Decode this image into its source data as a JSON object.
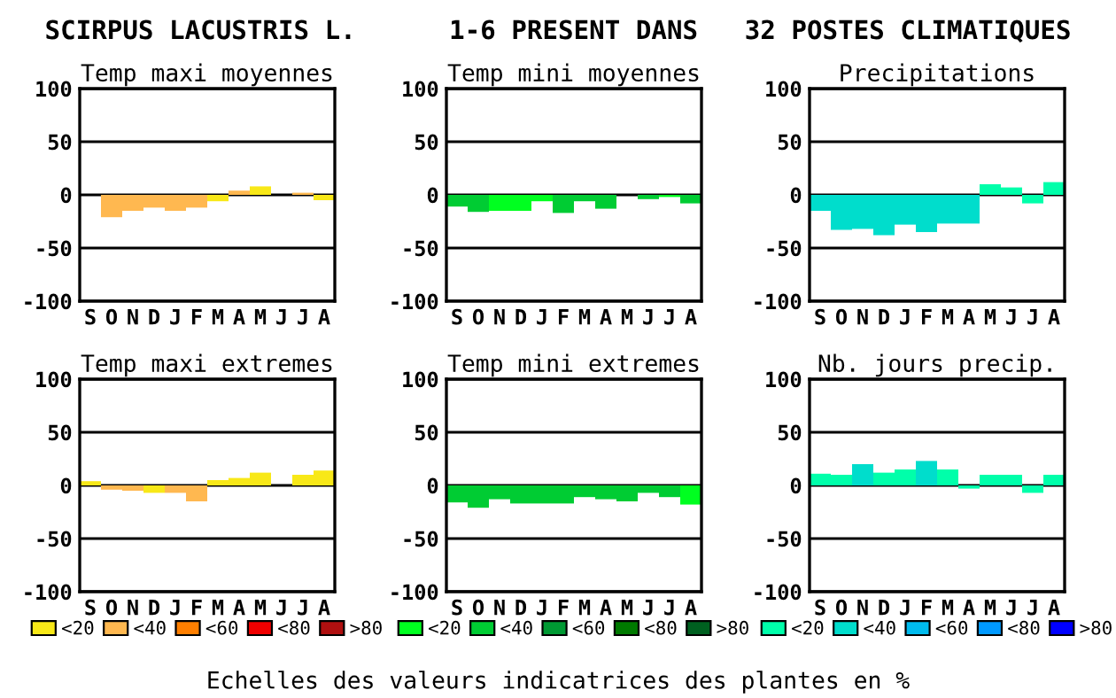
{
  "chart_data": [
    {
      "type": "bar",
      "title": "Temp maxi moyennes",
      "categories": [
        "S",
        "O",
        "N",
        "D",
        "J",
        "F",
        "M",
        "A",
        "M",
        "J",
        "J",
        "A"
      ],
      "ylim": [
        -100,
        100
      ],
      "yticks": [
        -100,
        -50,
        0,
        50,
        100
      ],
      "grid": "y",
      "legend": false,
      "series": [
        {
          "color": "#f8e818",
          "values": [
            null,
            null,
            null,
            null,
            null,
            null,
            -6,
            null,
            8,
            null,
            null,
            -5
          ]
        },
        {
          "color": "#ffb850",
          "values": [
            0,
            -21,
            -15,
            -12,
            -15,
            -12,
            null,
            4,
            null,
            0,
            2,
            null
          ]
        }
      ]
    },
    {
      "type": "bar",
      "title": "Temp mini moyennes",
      "categories": [
        "S",
        "O",
        "N",
        "D",
        "J",
        "F",
        "M",
        "A",
        "M",
        "J",
        "J",
        "A"
      ],
      "ylim": [
        -100,
        100
      ],
      "yticks": [
        -100,
        -50,
        0,
        50,
        100
      ],
      "grid": "y",
      "legend": false,
      "series": [
        {
          "color": "#00ff20",
          "values": [
            null,
            null,
            -15,
            -15,
            -6,
            null,
            null,
            null,
            0,
            null,
            -2,
            null
          ]
        },
        {
          "color": "#00cc33",
          "values": [
            -11,
            -16,
            null,
            null,
            null,
            -17,
            -6,
            -13,
            null,
            -4,
            null,
            -8
          ]
        }
      ]
    },
    {
      "type": "bar",
      "title": "Precipitations",
      "categories": [
        "S",
        "O",
        "N",
        "D",
        "J",
        "F",
        "M",
        "A",
        "M",
        "J",
        "J",
        "A"
      ],
      "ylim": [
        -100,
        100
      ],
      "yticks": [
        -100,
        -50,
        0,
        50,
        100
      ],
      "grid": "y",
      "legend": false,
      "series": [
        {
          "color": "#00ffaa",
          "values": [
            null,
            null,
            null,
            null,
            null,
            null,
            null,
            null,
            10,
            7,
            -8,
            12
          ]
        },
        {
          "color": "#00ddcc",
          "values": [
            -15,
            -33,
            -32,
            -38,
            -28,
            -35,
            -27,
            -27,
            null,
            null,
            null,
            null
          ]
        }
      ]
    },
    {
      "type": "bar",
      "title": "Temp maxi extremes",
      "categories": [
        "S",
        "O",
        "N",
        "D",
        "J",
        "F",
        "M",
        "A",
        "M",
        "J",
        "J",
        "A"
      ],
      "ylim": [
        -100,
        100
      ],
      "yticks": [
        -100,
        -50,
        0,
        50,
        100
      ],
      "grid": "y",
      "legend": "bottom",
      "series": [
        {
          "name": "<20",
          "color": "#f8e818",
          "values": [
            4,
            null,
            null,
            -7,
            null,
            null,
            5,
            7,
            12,
            0,
            10,
            14
          ]
        },
        {
          "name": "<40",
          "color": "#ffb850",
          "values": [
            null,
            -4,
            -5,
            null,
            -7,
            -15,
            null,
            null,
            null,
            null,
            null,
            null
          ]
        },
        {
          "name": "<60",
          "color": "#ff7f00",
          "values": [
            null,
            null,
            null,
            null,
            null,
            null,
            null,
            null,
            null,
            null,
            null,
            null
          ]
        },
        {
          "name": "<80",
          "color": "#f00000",
          "values": [
            null,
            null,
            null,
            null,
            null,
            null,
            null,
            null,
            null,
            null,
            null,
            null
          ]
        },
        {
          "name": ">80",
          "color": "#b01010",
          "values": [
            null,
            null,
            null,
            null,
            null,
            null,
            null,
            null,
            null,
            null,
            null,
            null
          ]
        }
      ]
    },
    {
      "type": "bar",
      "title": "Temp mini extremes",
      "categories": [
        "S",
        "O",
        "N",
        "D",
        "J",
        "F",
        "M",
        "A",
        "M",
        "J",
        "J",
        "A"
      ],
      "ylim": [
        -100,
        100
      ],
      "yticks": [
        -100,
        -50,
        0,
        50,
        100
      ],
      "grid": "y",
      "legend": "bottom",
      "series": [
        {
          "name": "<20",
          "color": "#00ff20",
          "values": [
            null,
            null,
            null,
            null,
            null,
            null,
            null,
            null,
            null,
            null,
            null,
            -18
          ]
        },
        {
          "name": "<40",
          "color": "#00cc33",
          "values": [
            -16,
            -21,
            -13,
            -17,
            -17,
            -17,
            -11,
            -13,
            -15,
            -7,
            -11,
            null
          ]
        },
        {
          "name": "<60",
          "color": "#009933",
          "values": [
            null,
            null,
            null,
            null,
            null,
            null,
            null,
            null,
            null,
            null,
            null,
            null
          ]
        },
        {
          "name": "<80",
          "color": "#007a00",
          "values": [
            null,
            null,
            null,
            null,
            null,
            null,
            null,
            null,
            null,
            null,
            null,
            null
          ]
        },
        {
          "name": ">80",
          "color": "#006020",
          "values": [
            null,
            null,
            null,
            null,
            null,
            null,
            null,
            null,
            null,
            null,
            null,
            null
          ]
        }
      ]
    },
    {
      "type": "bar",
      "title": "Nb. jours precip.",
      "categories": [
        "S",
        "O",
        "N",
        "D",
        "J",
        "F",
        "M",
        "A",
        "M",
        "J",
        "J",
        "A"
      ],
      "ylim": [
        -100,
        100
      ],
      "yticks": [
        -100,
        -50,
        0,
        50,
        100
      ],
      "grid": "y",
      "legend": "bottom",
      "series": [
        {
          "name": "<20",
          "color": "#00ffaa",
          "values": [
            11,
            10,
            null,
            12,
            15,
            null,
            15,
            -3,
            10,
            10,
            -7,
            10
          ]
        },
        {
          "name": "<40",
          "color": "#00ddcc",
          "values": [
            null,
            null,
            20,
            null,
            null,
            23,
            null,
            null,
            null,
            null,
            null,
            null
          ]
        },
        {
          "name": "<60",
          "color": "#00bbee",
          "values": [
            null,
            null,
            null,
            null,
            null,
            null,
            null,
            null,
            null,
            null,
            null,
            null
          ]
        },
        {
          "name": "<80",
          "color": "#0099ff",
          "values": [
            null,
            null,
            null,
            null,
            null,
            null,
            null,
            null,
            null,
            null,
            null,
            null
          ]
        },
        {
          "name": ">80",
          "color": "#0000ff",
          "values": [
            null,
            null,
            null,
            null,
            null,
            null,
            null,
            null,
            null,
            null,
            null,
            null
          ]
        }
      ]
    },
    {
      "type": "other",
      "title": "SCIRPUS LACUSTRIS L.      1-6 PRESENT DANS   32 POSTES CLIMATIQUES",
      "annotations": [
        "Echelles des valeurs indicatrices des plantes en %"
      ]
    }
  ]
}
